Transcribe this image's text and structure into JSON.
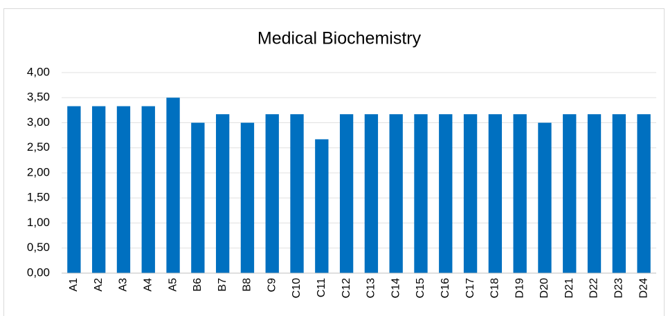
{
  "chart_data": {
    "type": "bar",
    "title": "Medical Biochemistry",
    "categories": [
      "A1",
      "A2",
      "A3",
      "A4",
      "A5",
      "B6",
      "B7",
      "B8",
      "C9",
      "C10",
      "C11",
      "C12",
      "C13",
      "C14",
      "C15",
      "C16",
      "C17",
      "C18",
      "D19",
      "D20",
      "D21",
      "D22",
      "D23",
      "D24"
    ],
    "values": [
      3.33,
      3.33,
      3.33,
      3.33,
      3.5,
      3.0,
      3.17,
      3.0,
      3.17,
      3.17,
      2.67,
      3.17,
      3.17,
      3.17,
      3.17,
      3.17,
      3.17,
      3.17,
      3.17,
      3.0,
      3.17,
      3.17,
      3.17,
      3.17
    ],
    "color": "#0070c0",
    "ylim": [
      0,
      4
    ],
    "yticks": [
      {
        "value": 0,
        "label": "0,00"
      },
      {
        "value": 0.5,
        "label": "0,50"
      },
      {
        "value": 1,
        "label": "1,00"
      },
      {
        "value": 1.5,
        "label": "1,50"
      },
      {
        "value": 2,
        "label": "2,00"
      },
      {
        "value": 2.5,
        "label": "2,50"
      },
      {
        "value": 3,
        "label": "3,00"
      },
      {
        "value": 3.5,
        "label": "3,50"
      },
      {
        "value": 4,
        "label": "4,00"
      }
    ],
    "grid": true
  }
}
